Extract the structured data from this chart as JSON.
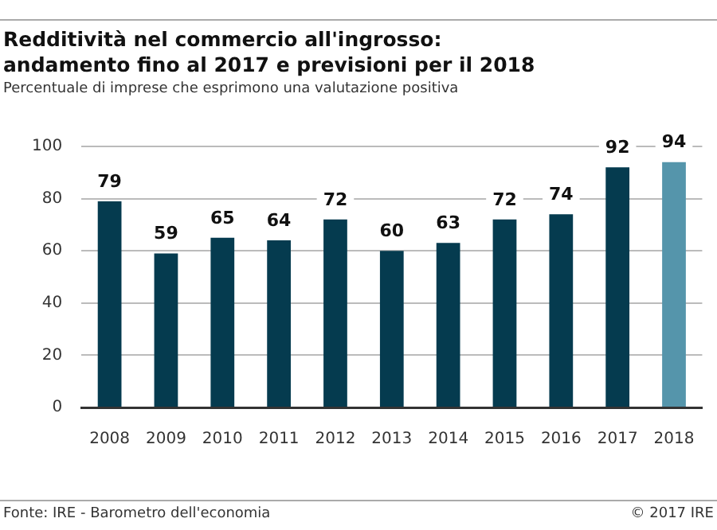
{
  "chart_data": {
    "type": "bar",
    "title": "Redditività nel commercio all'ingrosso:\nandamento fino al 2017 e previsioni per il 2018",
    "subtitle": "Percentuale di imprese che esprimono una valutazione positiva",
    "categories": [
      "2008",
      "2009",
      "2010",
      "2011",
      "2012",
      "2013",
      "2014",
      "2015",
      "2016",
      "2017",
      "2018"
    ],
    "values": [
      79,
      59,
      65,
      64,
      72,
      60,
      63,
      72,
      74,
      92,
      94
    ],
    "colors": [
      "#053b4f",
      "#053b4f",
      "#053b4f",
      "#053b4f",
      "#053b4f",
      "#053b4f",
      "#053b4f",
      "#053b4f",
      "#053b4f",
      "#053b4f",
      "#5595ab"
    ],
    "ylim": [
      0,
      100
    ],
    "yticks": [
      0,
      20,
      40,
      60,
      80,
      100
    ],
    "grid": "y",
    "data_labels": true,
    "legend": false,
    "annotations": [
      "Fonte: IRE - Barometro dell'economia",
      "© 2017 IRE"
    ]
  }
}
